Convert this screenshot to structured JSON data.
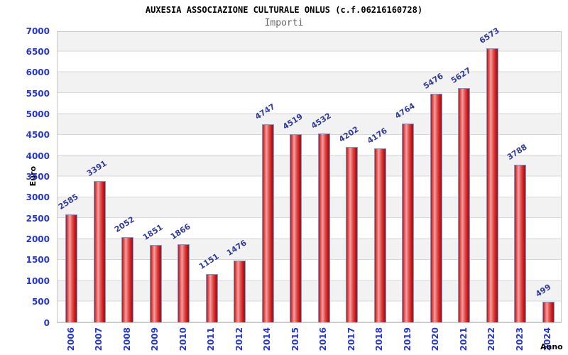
{
  "header": {
    "title": "AUXESIA ASSOCIAZIONE CULTURALE ONLUS (c.f.06216160728)",
    "subtitle": "Importi"
  },
  "chart_data": {
    "type": "bar",
    "title": "AUXESIA ASSOCIAZIONE CULTURALE ONLUS (c.f.06216160728)",
    "subtitle": "Importi",
    "xlabel": "Anno",
    "ylabel": "Euro",
    "categories": [
      "2006",
      "2007",
      "2008",
      "2009",
      "2010",
      "2011",
      "2012",
      "2014",
      "2015",
      "2016",
      "2017",
      "2018",
      "2019",
      "2020",
      "2021",
      "2022",
      "2023",
      "2024"
    ],
    "values": [
      2585,
      3391,
      2052,
      1851,
      1866,
      1151,
      1476,
      4747,
      4519,
      4532,
      4202,
      4176,
      4764,
      5476,
      5627,
      6573,
      3788,
      499
    ],
    "ylim": [
      0,
      7000
    ],
    "ytick_step": 500,
    "yticks": [
      0,
      500,
      1000,
      1500,
      2000,
      2500,
      3000,
      3500,
      4000,
      4500,
      5000,
      5500,
      6000,
      6500,
      7000
    ],
    "grid": "horizontal-bands",
    "legend": "none",
    "colors": {
      "bar_dark": "#c41212",
      "bar_light": "#f2a0a0",
      "bar_border": "#58a6e8",
      "tick_label": "#2636d4",
      "value_label": "#333c9c",
      "band_gray": "#f2f2f2",
      "band_white": "#ffffff",
      "gridline": "#d8d8d8",
      "plot_border": "#c8c8c8",
      "title_color": "#000000",
      "subtitle_color": "#666666"
    }
  }
}
